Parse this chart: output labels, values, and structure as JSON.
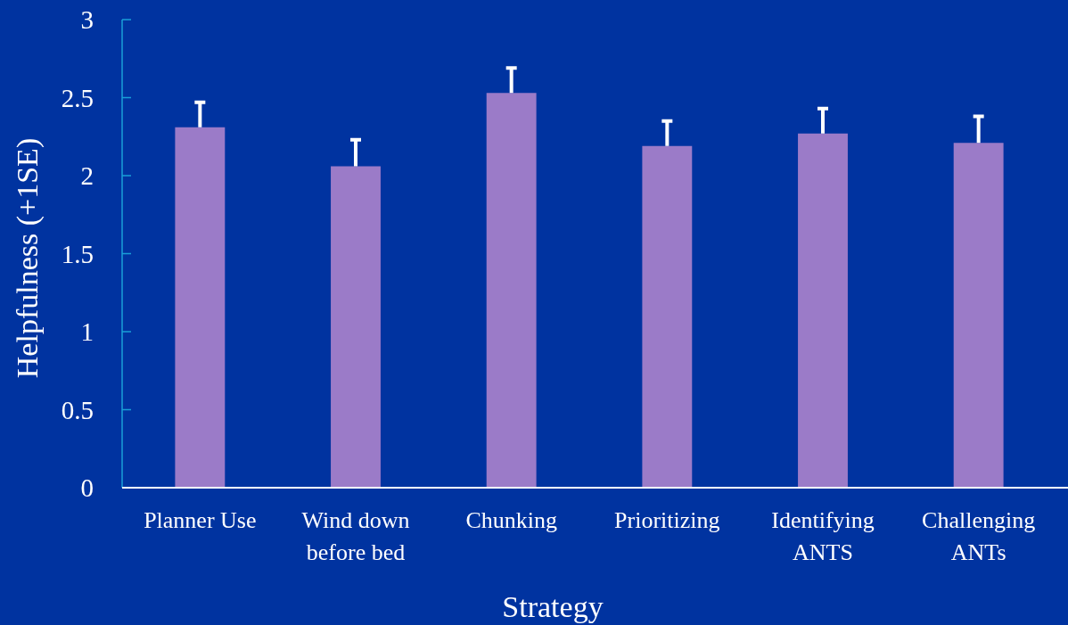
{
  "chart_data": {
    "type": "bar",
    "xlabel": "Strategy",
    "ylabel": "Helpfulness (+1SE)",
    "categories": [
      "Planner Use",
      "Wind down before bed",
      "Chunking",
      "Prioritizing",
      "Identifying ANTS",
      "Challenging ANTs"
    ],
    "values": [
      2.31,
      2.06,
      2.53,
      2.19,
      2.27,
      2.21
    ],
    "errors": [
      [
        2.31,
        2.47
      ],
      [
        2.06,
        2.23
      ],
      [
        2.53,
        2.69
      ],
      [
        2.19,
        2.35
      ],
      [
        2.27,
        2.43
      ],
      [
        2.21,
        2.38
      ]
    ],
    "color": "#9b7bc8",
    "ylim": [
      0,
      3
    ],
    "yticks": [
      0,
      0.5,
      1,
      1.5,
      2,
      2.5,
      3
    ],
    "grid": false
  }
}
